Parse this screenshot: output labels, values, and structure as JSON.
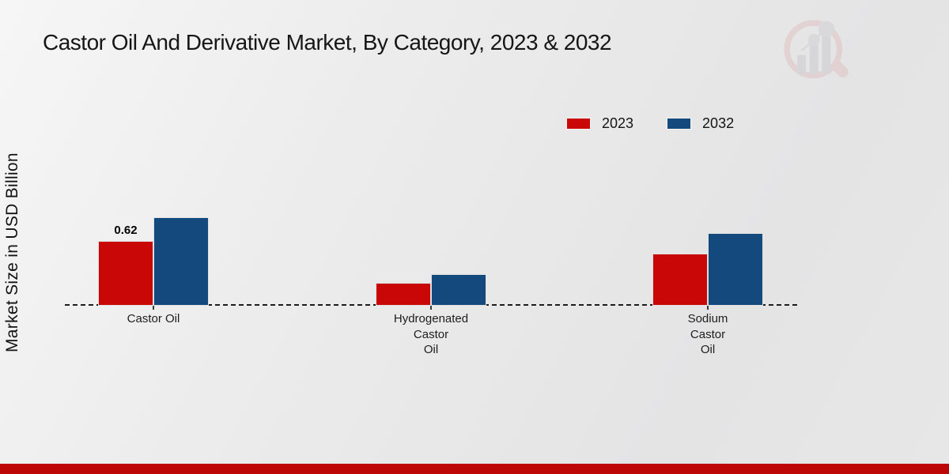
{
  "title": "Castor Oil And Derivative Market, By Category, 2023 & 2032",
  "y_axis_label": "Market Size in USD Billion",
  "watermark_icon": "magnifier-bar-chart-logo",
  "footer": {
    "accent_color": "#bd0707"
  },
  "chart_data": {
    "type": "bar",
    "title": "Castor Oil And Derivative Market, By Category, 2023 & 2032",
    "ylabel": "Market Size in USD Billion",
    "unit": "USD Billion",
    "categories": [
      "Castor Oil",
      "Hydrogenated\nCastor\nOil",
      "Sodium\nCastor\nOil"
    ],
    "series": [
      {
        "name": "2023",
        "color": "#c90707",
        "values": [
          0.62,
          0.22,
          0.5
        ]
      },
      {
        "name": "2032",
        "color": "#14497e",
        "values": [
          0.85,
          0.3,
          0.7
        ]
      }
    ],
    "data_labels": [
      {
        "series": "2023",
        "category": "Castor Oil",
        "text": "0.62"
      }
    ],
    "baseline_style": "dashed",
    "y_axis_ticks_visible": false,
    "gridlines": false,
    "legend_position": "top-right"
  }
}
